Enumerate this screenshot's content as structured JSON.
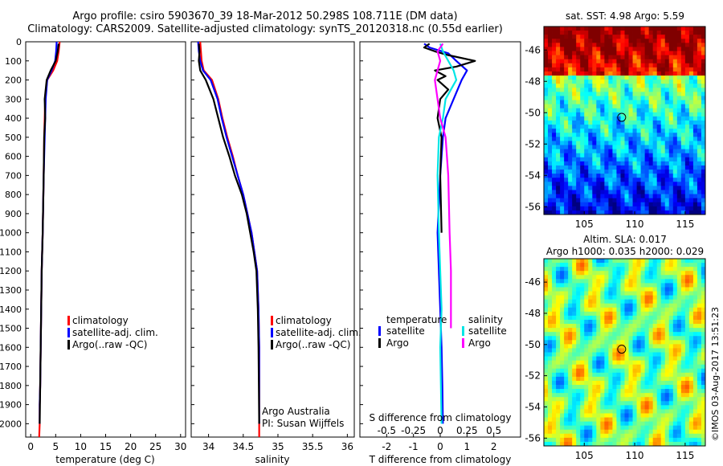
{
  "header": {
    "line1": "Argo profile: csiro 5903670_39 18-Mar-2012 50.298S 108.711E (DM data)",
    "line2": "Climatology: CARS2009. Satellite-adjusted climatology: synTS_20120318.nc (0.55d earlier)"
  },
  "legend": {
    "climatology": "climatology",
    "satellite_adj": "satellite-adj. clim.",
    "argo": "Argo(..raw -QC)",
    "temperature": "temperature",
    "salinity": "salinity",
    "satellite": "satellite",
    "argo_short": "Argo"
  },
  "credits": {
    "line1": "Argo Australia",
    "line2": "PI: Susan Wijffels"
  },
  "stamp": "©IMOS 03-Aug-2017 13:51:23",
  "colors": {
    "climatology": "#ff0000",
    "satellite": "#0000ff",
    "argo": "#000000",
    "sat_salinity": "#00e5e5",
    "argo_salinity": "#ff00ff"
  },
  "chart_data": [
    {
      "type": "line",
      "id": "temperature",
      "xlabel": "temperature (deg C)",
      "ylabel": "",
      "xlim": [
        -1,
        31
      ],
      "ylim": [
        2070,
        0
      ],
      "xticks": [
        0,
        5,
        10,
        15,
        20,
        25,
        30
      ],
      "yticks": [
        0,
        100,
        200,
        300,
        400,
        500,
        600,
        700,
        800,
        900,
        1000,
        1100,
        1200,
        1300,
        1400,
        1500,
        1600,
        1700,
        1800,
        1900,
        2000
      ],
      "series": [
        {
          "name": "climatology",
          "color": "#ff0000",
          "x": [
            5.8,
            5.6,
            5.3,
            4.5,
            3.3,
            2.9,
            2.8,
            2.7,
            2.6,
            2.4,
            2.2,
            2.1,
            2.0,
            1.9,
            1.8,
            1.8,
            1.7
          ],
          "y": [
            0,
            50,
            100,
            150,
            200,
            300,
            400,
            500,
            700,
            1000,
            1200,
            1400,
            1600,
            1800,
            1900,
            2000,
            2070
          ]
        },
        {
          "name": "satellite-adj. clim.",
          "color": "#0000ff",
          "x": [
            5.2,
            5.1,
            4.9,
            4.2,
            3.3,
            3.0,
            2.9,
            2.8,
            2.6,
            2.4,
            2.2,
            2.1,
            2.0,
            1.9,
            1.8,
            1.8
          ],
          "y": [
            0,
            50,
            100,
            150,
            200,
            300,
            400,
            500,
            700,
            1000,
            1200,
            1400,
            1600,
            1800,
            1900,
            2000
          ]
        },
        {
          "name": "Argo(..raw -QC)",
          "color": "#000000",
          "x": [
            5.6,
            5.4,
            5.0,
            4.0,
            3.2,
            2.8,
            2.9,
            2.7,
            2.6,
            2.4,
            2.2,
            2.1,
            2.0,
            1.9,
            1.8
          ],
          "y": [
            10,
            50,
            100,
            150,
            200,
            300,
            400,
            500,
            700,
            1000,
            1200,
            1400,
            1600,
            1800,
            2000
          ]
        }
      ]
    },
    {
      "type": "line",
      "id": "salinity",
      "xlabel": "salinity",
      "ylabel": "",
      "xlim": [
        33.75,
        36.1
      ],
      "ylim": [
        2070,
        0
      ],
      "xticks": [
        34,
        34.5,
        35,
        35.5,
        36
      ],
      "series": [
        {
          "name": "climatology",
          "color": "#ff0000",
          "x": [
            33.88,
            33.89,
            33.9,
            33.93,
            34.05,
            34.14,
            34.2,
            34.27,
            34.35,
            34.42,
            34.5,
            34.56,
            34.62,
            34.66,
            34.7,
            34.72,
            34.73,
            34.73,
            34.73
          ],
          "y": [
            0,
            50,
            100,
            150,
            200,
            300,
            400,
            500,
            600,
            700,
            800,
            900,
            1000,
            1100,
            1200,
            1400,
            1600,
            1800,
            2070
          ]
        },
        {
          "name": "satellite-adj. clim.",
          "color": "#0000ff",
          "x": [
            33.85,
            33.86,
            33.88,
            33.92,
            34.03,
            34.13,
            34.19,
            34.26,
            34.34,
            34.42,
            34.5,
            34.56,
            34.62,
            34.66,
            34.7,
            34.72,
            34.73,
            34.73
          ],
          "y": [
            0,
            50,
            100,
            150,
            200,
            300,
            400,
            500,
            600,
            700,
            800,
            900,
            1000,
            1100,
            1200,
            1400,
            1600,
            2000
          ]
        },
        {
          "name": "Argo(..raw -QC)",
          "color": "#000000",
          "x": [
            33.86,
            33.87,
            33.86,
            33.88,
            33.96,
            34.07,
            34.14,
            34.21,
            34.3,
            34.38,
            34.48,
            34.55,
            34.6,
            34.65,
            34.69,
            34.71,
            34.72,
            34.73
          ],
          "y": [
            10,
            50,
            100,
            150,
            200,
            300,
            400,
            500,
            600,
            700,
            800,
            900,
            1000,
            1100,
            1200,
            1400,
            1600,
            2000
          ]
        }
      ]
    },
    {
      "type": "line",
      "id": "difference",
      "xlabel": "T difference from climatology",
      "x2label": "S difference from climatology",
      "xlim": [
        -3,
        3
      ],
      "ylim": [
        2070,
        0
      ],
      "xticks": [
        -2,
        -1,
        0,
        1,
        2
      ],
      "x2ticks": [
        -0.5,
        -0.25,
        0,
        0.25,
        0.5
      ],
      "x2tick_labels": [
        "-0.5",
        "-0.25",
        "0",
        "0.25",
        "0.5"
      ],
      "series": [
        {
          "name": "temperature satellite",
          "color": "#0000ff",
          "x": [
            -0.6,
            -0.4,
            0.3,
            0.6,
            1.0,
            0.8,
            0.5,
            0.2,
            0.1,
            0.0,
            -0.1,
            -0.05,
            0.0,
            0.05,
            0.08,
            0.1
          ],
          "y": [
            10,
            30,
            60,
            100,
            150,
            200,
            300,
            400,
            500,
            700,
            1000,
            1200,
            1400,
            1600,
            1800,
            2000
          ]
        },
        {
          "name": "temperature Argo",
          "color": "#000000",
          "x": [
            -0.4,
            -0.6,
            -0.2,
            0.3,
            1.3,
            0.6,
            -0.2,
            0.2,
            -0.1,
            0.3,
            0.0,
            -0.1,
            0.05,
            0.0,
            0.05
          ],
          "y": [
            10,
            30,
            50,
            70,
            100,
            130,
            150,
            180,
            200,
            250,
            300,
            400,
            500,
            700,
            1000
          ]
        },
        {
          "name": "salinity satellite",
          "color": "#00e5e5",
          "x": [
            0.0,
            0.1,
            0.3,
            0.5,
            0.6,
            0.2,
            0.1,
            -0.05,
            -0.1,
            -0.05,
            0.0,
            0.05,
            0.0,
            0.05
          ],
          "y": [
            10,
            50,
            100,
            150,
            200,
            300,
            400,
            500,
            700,
            1000,
            1200,
            1400,
            1600,
            2000
          ]
        },
        {
          "name": "salinity Argo",
          "color": "#ff00ff",
          "x": [
            0.1,
            -0.1,
            0.0,
            -0.1,
            -0.2,
            -0.1,
            0.0,
            0.2,
            0.3,
            0.35,
            0.4,
            0.4,
            0.4
          ],
          "y": [
            10,
            50,
            100,
            150,
            200,
            300,
            400,
            500,
            700,
            1000,
            1200,
            1400,
            1500
          ]
        }
      ]
    },
    {
      "type": "heatmap",
      "id": "sst_map",
      "title": "sat. SST: 4.98 Argo: 5.59",
      "xlim": [
        101,
        117
      ],
      "ylim": [
        -56.5,
        -44.5
      ],
      "xticks": [
        105,
        110,
        115
      ],
      "yticks": [
        -46,
        -48,
        -50,
        -52,
        -54,
        -56
      ],
      "marker": {
        "lon": 108.711,
        "lat": -50.298
      }
    },
    {
      "type": "heatmap",
      "id": "sla_map",
      "title": "Altim. SLA: 0.017",
      "subtitle": "Argo h1000: 0.035 h2000: 0.029",
      "xlim": [
        101,
        117
      ],
      "ylim": [
        -56.5,
        -44.5
      ],
      "xticks": [
        105,
        110,
        115
      ],
      "yticks": [
        -46,
        -48,
        -50,
        -52,
        -54,
        -56
      ],
      "marker": {
        "lon": 108.711,
        "lat": -50.298
      }
    }
  ]
}
